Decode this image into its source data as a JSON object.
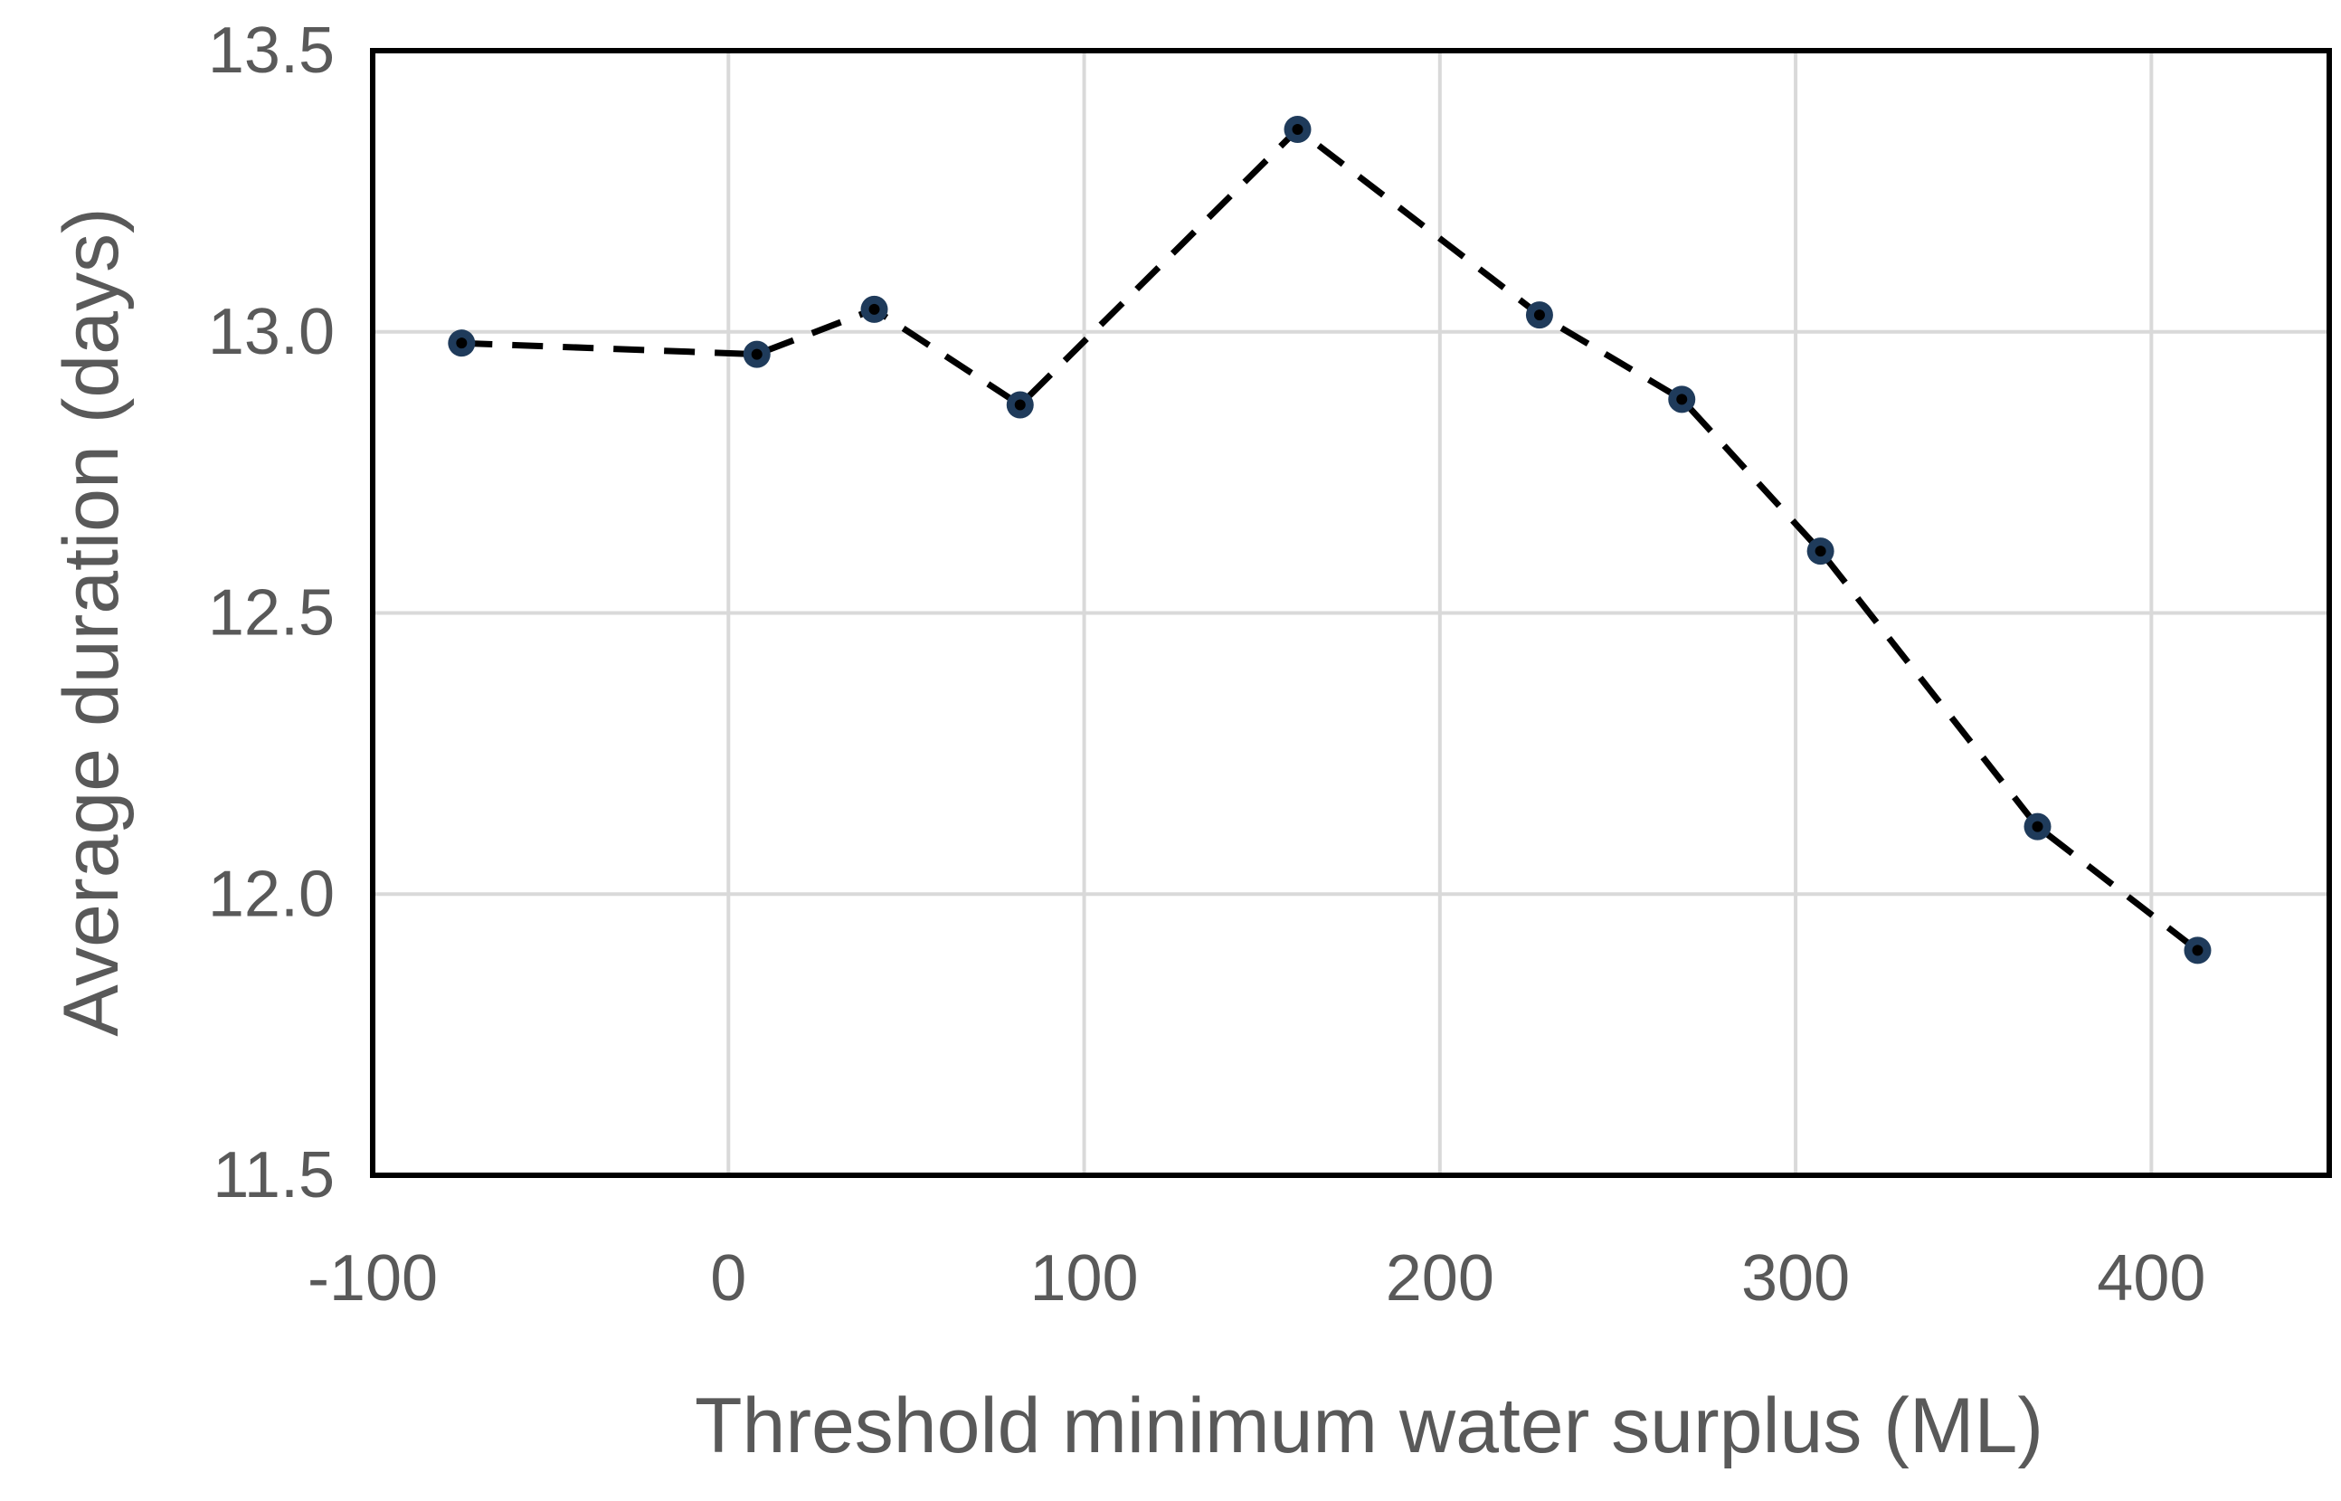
{
  "chart_data": {
    "type": "line",
    "title": "",
    "xlabel": "Threshold minimum water surplus (ML)",
    "ylabel": "Average duration (days)",
    "xlim": [
      -100,
      450
    ],
    "ylim": [
      11.5,
      13.5
    ],
    "xticks": [
      -100,
      0,
      100,
      200,
      300,
      400
    ],
    "yticks": [
      11.5,
      12.0,
      12.5,
      13.0,
      13.5
    ],
    "xtick_labels": [
      "-100",
      "0",
      "100",
      "200",
      "300",
      "400"
    ],
    "ytick_labels": [
      "11.5",
      "12.0",
      "12.5",
      "13.0",
      "13.5"
    ],
    "grid": true,
    "legend": "none",
    "series": [
      {
        "name": "Average duration",
        "style": "dashed line with markers",
        "color": "#000000",
        "marker_color": "#1f3b5b",
        "x": [
          -75,
          8,
          41,
          82,
          160,
          228,
          268,
          307,
          368,
          413
        ],
        "y": [
          12.98,
          12.96,
          13.04,
          12.87,
          13.36,
          13.03,
          12.88,
          12.61,
          12.12,
          11.9
        ]
      }
    ]
  }
}
